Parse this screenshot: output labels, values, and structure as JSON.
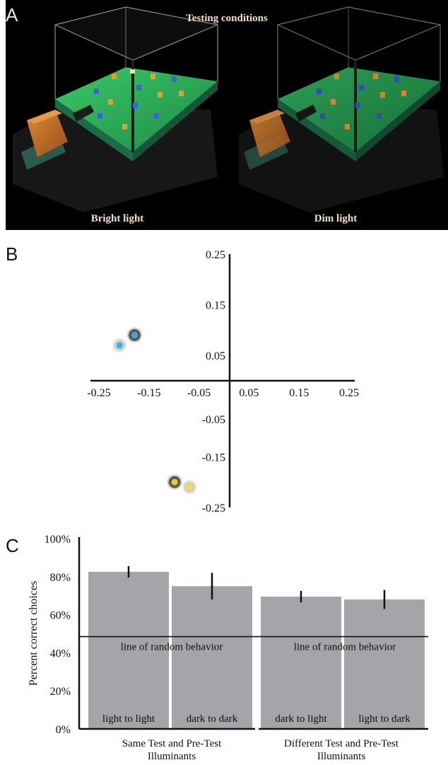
{
  "panel_a": {
    "letter": "A",
    "title": "Testing conditions",
    "left_label": "Bright light",
    "right_label": "Dim light",
    "colors": {
      "background": "#000000",
      "floor": "#2fb35a",
      "box": "#c8742a",
      "text": "#f1e2c8"
    }
  },
  "chart_data": [
    {
      "panel": "B",
      "type": "scatter",
      "xlim": [
        -0.25,
        0.25
      ],
      "ylim": [
        -0.25,
        0.25
      ],
      "x_ticks": [
        "-0.25",
        "-0.15",
        "-0.05",
        "0.05",
        "0.15",
        "0.25"
      ],
      "y_ticks": [
        "0.25",
        "0.15",
        "0.05",
        "-0.05",
        "-0.15",
        "-0.25"
      ],
      "grid": false,
      "points": [
        {
          "x": -0.19,
          "y": 0.09,
          "color": "#3aa7dc",
          "ring": "dark"
        },
        {
          "x": -0.22,
          "y": 0.07,
          "color": "#35b5ec",
          "ring": "light"
        },
        {
          "x": -0.11,
          "y": -0.2,
          "color": "#e6cf2a",
          "ring": "dark"
        },
        {
          "x": -0.08,
          "y": -0.21,
          "color": "#f4e23c",
          "ring": "light"
        }
      ]
    },
    {
      "panel": "C",
      "type": "bar",
      "ylabel": "Percent correct choices",
      "ylim": [
        0,
        100
      ],
      "y_ticks": [
        "0%",
        "20%",
        "40%",
        "60%",
        "80%",
        "100%"
      ],
      "reference_line": {
        "value": 48.5,
        "label": "line of random behavior"
      },
      "groups": [
        {
          "label": "Same Test and Pre-Test",
          "label2": "Illuminants"
        },
        {
          "label": "Different Test and Pre-Test",
          "label2": "Illuminants"
        }
      ],
      "categories": [
        "light to light",
        "dark to dark",
        "dark to light",
        "light to dark"
      ],
      "values": [
        82.5,
        75,
        69.5,
        68
      ],
      "errors": [
        3,
        7,
        3,
        5
      ],
      "colors": {
        "bar": "#a4a5a8",
        "axis": "#111111"
      }
    }
  ]
}
